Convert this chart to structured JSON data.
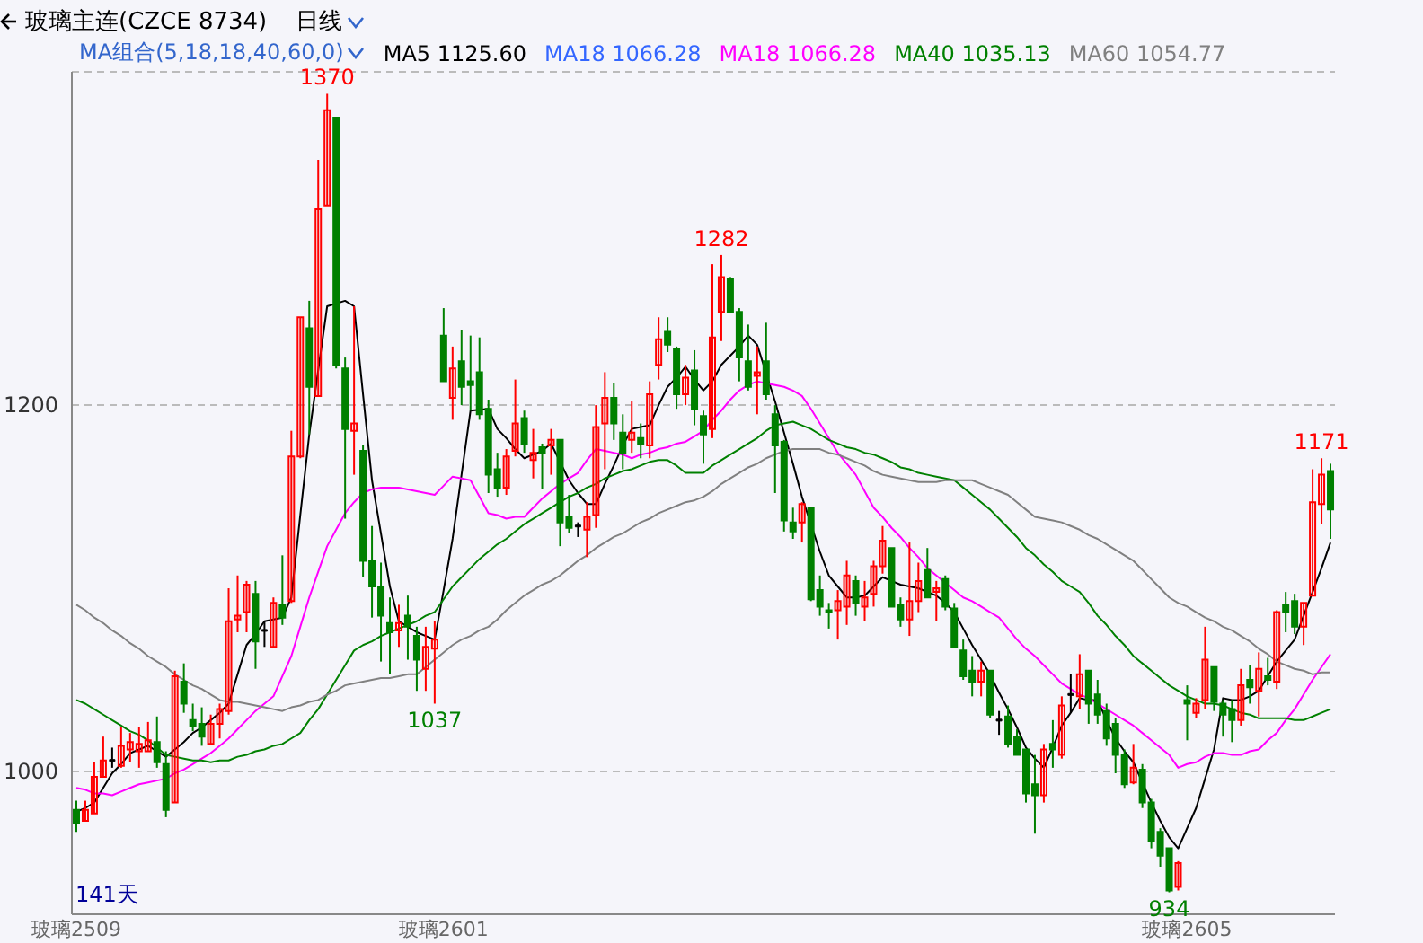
{
  "chart_data": {
    "type": "candlestick",
    "title": "玻璃主连(CZCE 8734)",
    "subtitle": "日线",
    "legend_title": "MA组合(5,18,18,40,60,0)",
    "legend": "top",
    "grid": "y",
    "categories": [
      "玻璃2509",
      null,
      null,
      null,
      null,
      null,
      null,
      null,
      null,
      null,
      null,
      null,
      null,
      null,
      null,
      null,
      null,
      null,
      null,
      null,
      null,
      null,
      null,
      null,
      null,
      null,
      null,
      null,
      null,
      null,
      null,
      null,
      null,
      null,
      null,
      null,
      null,
      null,
      null,
      null,
      null,
      "玻璃2601",
      null,
      null,
      null,
      null,
      null,
      null,
      null,
      null,
      null,
      null,
      null,
      null,
      null,
      null,
      null,
      null,
      null,
      null,
      null,
      null,
      null,
      null,
      null,
      null,
      null,
      null,
      null,
      null,
      null,
      null,
      null,
      null,
      null,
      null,
      null,
      null,
      null,
      null,
      null,
      null,
      null,
      null,
      null,
      null,
      null,
      null,
      null,
      null,
      null,
      null,
      null,
      null,
      null,
      null,
      null,
      null,
      null,
      null,
      null,
      null,
      null,
      null,
      null,
      null,
      null,
      null,
      null,
      null,
      null,
      null,
      null,
      null,
      null,
      null,
      null,
      null,
      null,
      null,
      null,
      null,
      null,
      null,
      "玻璃2605",
      null,
      null,
      null,
      null,
      null,
      null,
      null,
      null,
      null,
      null,
      null,
      null,
      null,
      null,
      null,
      null
    ],
    "ylim": [
      922,
      1382
    ],
    "yticks": [
      1000,
      1200
    ],
    "ohlc": [
      [
        979,
        984,
        967,
        972
      ],
      [
        973,
        984,
        973,
        979
      ],
      [
        977,
        1005,
        977,
        997
      ],
      [
        997,
        1019,
        997,
        1006
      ],
      [
        1006,
        1013,
        1002,
        1006
      ],
      [
        1003,
        1024,
        1002,
        1014
      ],
      [
        1012,
        1021,
        1005,
        1016
      ],
      [
        1011,
        1024,
        1002,
        1015
      ],
      [
        1011,
        1027,
        1011,
        1017
      ],
      [
        1016,
        1030,
        1002,
        1005
      ],
      [
        1004,
        1011,
        975,
        979
      ],
      [
        983,
        1055,
        983,
        1052
      ],
      [
        1049,
        1059,
        1032,
        1037
      ],
      [
        1028,
        1037,
        1022,
        1025
      ],
      [
        1026,
        1035,
        1014,
        1019
      ],
      [
        1015,
        1031,
        1015,
        1026
      ],
      [
        1026,
        1037,
        1018,
        1034
      ],
      [
        1033,
        1100,
        1031,
        1082
      ],
      [
        1083,
        1107,
        1076,
        1085
      ],
      [
        1087,
        1104,
        1076,
        1102
      ],
      [
        1097,
        1104,
        1056,
        1071
      ],
      [
        1077,
        1082,
        1068,
        1077
      ],
      [
        1068,
        1095,
        1068,
        1092
      ],
      [
        1091,
        1118,
        1080,
        1084
      ],
      [
        1093,
        1186,
        1092,
        1172
      ],
      [
        1172,
        1248,
        1171,
        1248
      ],
      [
        1242,
        1257,
        1184,
        1210
      ],
      [
        1205,
        1334,
        1205,
        1307
      ],
      [
        1309,
        1370,
        1309,
        1361
      ],
      [
        1357,
        1357,
        1220,
        1222
      ],
      [
        1220,
        1226,
        1138,
        1187
      ],
      [
        1186,
        1254,
        1162,
        1190
      ],
      [
        1175,
        1178,
        1106,
        1115
      ],
      [
        1115,
        1134,
        1084,
        1101
      ],
      [
        1101,
        1114,
        1060,
        1085
      ],
      [
        1081,
        1095,
        1053,
        1076
      ],
      [
        1077,
        1091,
        1068,
        1081
      ],
      [
        1085,
        1096,
        1061,
        1079
      ],
      [
        1074,
        1079,
        1044,
        1061
      ],
      [
        1056,
        1079,
        1044,
        1068
      ],
      [
        1067,
        1082,
        1037,
        1072
      ],
      [
        1238,
        1253,
        1213,
        1213
      ],
      [
        1204,
        1232,
        1192,
        1220
      ],
      [
        1224,
        1241,
        1200,
        1210
      ],
      [
        1213,
        1238,
        1197,
        1211
      ],
      [
        1218,
        1237,
        1192,
        1195
      ],
      [
        1198,
        1203,
        1152,
        1162
      ],
      [
        1165,
        1174,
        1150,
        1155
      ],
      [
        1155,
        1176,
        1151,
        1172
      ],
      [
        1175,
        1214,
        1172,
        1190
      ],
      [
        1193,
        1197,
        1174,
        1179
      ],
      [
        1170,
        1187,
        1160,
        1174
      ],
      [
        1177,
        1179,
        1154,
        1174
      ],
      [
        1178,
        1187,
        1162,
        1181
      ],
      [
        1181,
        1181,
        1123,
        1136
      ],
      [
        1139,
        1151,
        1130,
        1133
      ],
      [
        1134,
        1136,
        1128,
        1134
      ],
      [
        1132,
        1147,
        1117,
        1139
      ],
      [
        1140,
        1200,
        1133,
        1188
      ],
      [
        1190,
        1218,
        1165,
        1204
      ],
      [
        1204,
        1212,
        1181,
        1190
      ],
      [
        1185,
        1195,
        1165,
        1174
      ],
      [
        1181,
        1202,
        1174,
        1185
      ],
      [
        1182,
        1190,
        1171,
        1179
      ],
      [
        1178,
        1213,
        1171,
        1206
      ],
      [
        1222,
        1248,
        1214,
        1236
      ],
      [
        1240,
        1248,
        1229,
        1233
      ],
      [
        1231,
        1232,
        1198,
        1206
      ],
      [
        1206,
        1222,
        1200,
        1215
      ],
      [
        1219,
        1230,
        1189,
        1198
      ],
      [
        1194,
        1197,
        1168,
        1184
      ],
      [
        1187,
        1277,
        1182,
        1237
      ],
      [
        1251,
        1282,
        1235,
        1270
      ],
      [
        1269,
        1270,
        1251,
        1251
      ],
      [
        1251,
        1253,
        1213,
        1226
      ],
      [
        1224,
        1244,
        1208,
        1210
      ],
      [
        1216,
        1232,
        1195,
        1218
      ],
      [
        1224,
        1245,
        1203,
        1206
      ],
      [
        1195,
        1200,
        1152,
        1178
      ],
      [
        1180,
        1181,
        1131,
        1137
      ],
      [
        1136,
        1144,
        1127,
        1131
      ],
      [
        1136,
        1147,
        1125,
        1146
      ],
      [
        1144,
        1144,
        1093,
        1094
      ],
      [
        1099,
        1107,
        1085,
        1090
      ],
      [
        1088,
        1092,
        1078,
        1087
      ],
      [
        1088,
        1099,
        1072,
        1093
      ],
      [
        1090,
        1115,
        1080,
        1107
      ],
      [
        1104,
        1107,
        1085,
        1092
      ],
      [
        1090,
        1104,
        1082,
        1095
      ],
      [
        1097,
        1115,
        1090,
        1112
      ],
      [
        1112,
        1134,
        1108,
        1126
      ],
      [
        1122,
        1122,
        1090,
        1090
      ],
      [
        1091,
        1095,
        1079,
        1083
      ],
      [
        1083,
        1125,
        1074,
        1093
      ],
      [
        1093,
        1114,
        1087,
        1104
      ],
      [
        1110,
        1122,
        1095,
        1095
      ],
      [
        1098,
        1104,
        1082,
        1100
      ],
      [
        1105,
        1107,
        1088,
        1090
      ],
      [
        1089,
        1092,
        1068,
        1068
      ],
      [
        1066,
        1072,
        1050,
        1052
      ],
      [
        1055,
        1063,
        1041,
        1049
      ],
      [
        1049,
        1060,
        1041,
        1055
      ],
      [
        1055,
        1055,
        1029,
        1031
      ],
      [
        1028,
        1033,
        1020,
        1028
      ],
      [
        1030,
        1036,
        1013,
        1015
      ],
      [
        1019,
        1023,
        1009,
        1009
      ],
      [
        1012,
        1012,
        983,
        988
      ],
      [
        993,
        1009,
        966,
        987
      ],
      [
        987,
        1015,
        983,
        1012
      ],
      [
        1015,
        1028,
        1002,
        1012
      ],
      [
        1009,
        1041,
        1007,
        1036
      ],
      [
        1042,
        1053,
        1032,
        1042
      ],
      [
        1041,
        1064,
        1034,
        1053
      ],
      [
        1055,
        1055,
        1026,
        1037
      ],
      [
        1042,
        1050,
        1026,
        1031
      ],
      [
        1033,
        1037,
        1014,
        1018
      ],
      [
        1026,
        1029,
        999,
        1009
      ],
      [
        1009,
        1012,
        991,
        993
      ],
      [
        994,
        1015,
        993,
        1002
      ],
      [
        1001,
        1004,
        980,
        983
      ],
      [
        983,
        985,
        958,
        962
      ],
      [
        967,
        969,
        948,
        954
      ],
      [
        958,
        958,
        934,
        935
      ],
      [
        937,
        951,
        935,
        950
      ],
      [
        1039,
        1047,
        1017,
        1037
      ],
      [
        1032,
        1040,
        1029,
        1037
      ],
      [
        1039,
        1079,
        1034,
        1061
      ],
      [
        1057,
        1057,
        1033,
        1038
      ],
      [
        1037,
        1039,
        1019,
        1031
      ],
      [
        1034,
        1039,
        1016,
        1028
      ],
      [
        1028,
        1056,
        1025,
        1047
      ],
      [
        1050,
        1058,
        1037,
        1046
      ],
      [
        1044,
        1065,
        1030,
        1056
      ],
      [
        1052,
        1062,
        1047,
        1050
      ],
      [
        1049,
        1088,
        1045,
        1087
      ],
      [
        1091,
        1098,
        1076,
        1087
      ],
      [
        1093,
        1097,
        1075,
        1079
      ],
      [
        1079,
        1092,
        1069,
        1092
      ],
      [
        1096,
        1165,
        1096,
        1147
      ],
      [
        1146,
        1171,
        1135,
        1162
      ],
      [
        1164,
        1168,
        1127,
        1143
      ]
    ],
    "colors": [
      "#008000",
      "#ff0000",
      "#ff0000",
      "#ff0000",
      "#000000",
      "#ff0000",
      "#ff0000",
      "#ff0000",
      "#ff0000",
      "#008000",
      "#008000",
      "#ff0000",
      "#008000",
      "#008000",
      "#008000",
      "#ff0000",
      "#ff0000",
      "#ff0000",
      "#ff0000",
      "#ff0000",
      "#008000",
      "#000000",
      "#ff0000",
      "#008000",
      "#ff0000",
      "#ff0000",
      "#008000",
      "#ff0000",
      "#ff0000",
      "#008000",
      "#008000",
      "#ff0000",
      "#008000",
      "#008000",
      "#008000",
      "#008000",
      "#ff0000",
      "#008000",
      "#008000",
      "#ff0000",
      "#ff0000",
      "#008000",
      "#ff0000",
      "#008000",
      "#008000",
      "#008000",
      "#008000",
      "#008000",
      "#ff0000",
      "#ff0000",
      "#008000",
      "#ff0000",
      "#008000",
      "#ff0000",
      "#008000",
      "#008000",
      "#000000",
      "#ff0000",
      "#ff0000",
      "#ff0000",
      "#008000",
      "#008000",
      "#ff0000",
      "#008000",
      "#ff0000",
      "#ff0000",
      "#008000",
      "#008000",
      "#ff0000",
      "#008000",
      "#008000",
      "#ff0000",
      "#ff0000",
      "#008000",
      "#008000",
      "#008000",
      "#ff0000",
      "#008000",
      "#008000",
      "#008000",
      "#008000",
      "#ff0000",
      "#008000",
      "#008000",
      "#008000",
      "#ff0000",
      "#ff0000",
      "#008000",
      "#ff0000",
      "#ff0000",
      "#ff0000",
      "#008000",
      "#008000",
      "#ff0000",
      "#ff0000",
      "#008000",
      "#ff0000",
      "#008000",
      "#008000",
      "#008000",
      "#008000",
      "#ff0000",
      "#008000",
      "#000000",
      "#008000",
      "#008000",
      "#008000",
      "#008000",
      "#ff0000",
      "#008000",
      "#ff0000",
      "#000000",
      "#ff0000",
      "#008000",
      "#008000",
      "#008000",
      "#008000",
      "#008000",
      "#ff0000",
      "#008000",
      "#008000",
      "#008000",
      "#008000",
      "#ff0000",
      "#008000",
      "#ff0000",
      "#ff0000",
      "#008000",
      "#008000",
      "#008000",
      "#ff0000",
      "#008000",
      "#ff0000",
      "#008000",
      "#ff0000",
      "#008000",
      "#008000",
      "#ff0000",
      "#ff0000",
      "#ff0000",
      "#008000"
    ],
    "series": [
      {
        "type": "line",
        "name": "MA5 1125.60",
        "color": "#000000",
        "values": [
          978,
          980,
          983,
          991,
          999,
          1004,
          1010,
          1012,
          1014,
          1011,
          1008,
          1012,
          1016,
          1021,
          1024,
          1028,
          1032,
          1037,
          1053,
          1069,
          1075,
          1082,
          1083,
          1084,
          1095,
          1140,
          1184,
          1219,
          1254,
          null,
          1257,
          1254,
          1206,
          1159,
          1130,
          1101,
          1082,
          1079,
          1076,
          1074,
          1072,
          1099,
          1127,
          1162,
          1197,
          null,
          1198,
          1187,
          1182,
          1176,
          1171,
          1173,
          1175,
          1179,
          1169,
          1159,
          1152,
          1146,
          1146,
          1157,
          1167,
          1178,
          1187,
          1188,
          1189,
          1200,
          1210,
          1215,
          1221,
          1214,
          1208,
          1213,
          1222,
          1227,
          1232,
          1238,
          1233,
          null,
          1202,
          1185,
          1168,
          1150,
          null,
          1120,
          1107,
          1101,
          1095,
          1095,
          1096,
          1101,
          1106,
          1104,
          1102,
          1101,
          1100,
          1098,
          1096,
          1092,
          1087,
          1078,
          1069,
          1061,
          1053,
          1043,
          1034,
          1024,
          1013,
          1007,
          1002,
          1013,
          1025,
          1032,
          1040,
          1039,
          1039,
          1028,
          1018,
          1011,
          1005,
          994,
          983,
          973,
          964,
          958,
          969,
          980,
          996,
          1012,
          1040,
          1039,
          1039,
          1041,
          1044,
          1052,
          1060,
          1066,
          1072,
          1085,
          1098,
          1111,
          1125
        ]
      },
      {
        "type": "line",
        "name": "MA18 1066.28",
        "color": "#3366ff",
        "values": [
          null,
          null,
          null,
          null,
          null,
          null,
          null,
          null,
          null,
          null,
          null,
          null,
          null,
          null,
          null,
          null,
          null,
          null,
          null,
          null,
          null,
          null,
          null,
          null,
          null,
          null,
          null,
          null,
          null,
          null,
          null,
          null,
          null,
          null,
          null,
          null,
          null,
          null,
          null,
          null,
          null,
          null,
          null,
          null,
          null,
          null,
          null,
          null,
          null,
          null,
          null,
          null,
          null,
          null,
          null,
          null,
          null,
          null,
          null,
          null,
          null,
          null,
          null,
          null,
          null,
          null,
          null,
          null,
          null,
          null,
          null,
          null,
          null,
          null,
          null,
          null,
          null,
          null,
          null,
          null,
          null,
          null,
          null,
          null,
          null,
          null,
          null,
          null,
          null,
          null,
          null,
          null,
          null,
          null,
          null,
          null,
          null,
          null,
          null,
          null,
          null,
          null,
          null,
          null,
          null,
          null,
          null,
          null,
          null,
          null,
          null,
          null,
          null,
          null,
          null,
          null,
          null,
          null,
          null,
          null,
          null,
          null,
          null,
          null,
          null,
          null,
          null,
          null,
          null,
          null,
          null,
          null,
          null,
          null,
          null,
          null,
          null,
          null,
          null,
          null,
          null
        ]
      },
      {
        "type": "line",
        "name": "MA18 1066.28",
        "color": "#ff00ff",
        "values": [
          991,
          990,
          988,
          988,
          987,
          989,
          991,
          993,
          994,
          995,
          996,
          999,
          1001,
          1004,
          1007,
          1010,
          1014,
          1018,
          1023,
          1028,
          1033,
          1037,
          1041,
          1052,
          1063,
          1079,
          1095,
          1109,
          1123,
          1132,
          1141,
          1147,
          1152,
          1154,
          1155,
          1155,
          1155,
          1154,
          1153,
          1152,
          1151,
          1156,
          1161,
          1160,
          1159,
          1150,
          1141,
          1140,
          1138,
          1139,
          1139,
          1144,
          1149,
          1153,
          1157,
          1160,
          1163,
          1170,
          1176,
          1175,
          1174,
          1173,
          1171,
          1173,
          1174,
          1176,
          1177,
          1179,
          1180,
          1183,
          1186,
          1192,
          1197,
          1203,
          1208,
          1211,
          1213,
          1212,
          1211,
          1210,
          1208,
          1205,
          1198,
          1190,
          1182,
          1174,
          1168,
          1162,
          1153,
          1144,
          1139,
          1133,
          1128,
          1122,
          1117,
          1111,
          1107,
          1103,
          1099,
          1095,
          1093,
          1090,
          1087,
          1084,
          1078,
          1072,
          1067,
          1063,
          1058,
          1053,
          1048,
          1045,
          1042,
          1040,
          1037,
          1034,
          1031,
          1028,
          1025,
          1021,
          1017,
          1013,
          1009,
          1002,
          1004,
          1005,
          1008,
          1010,
          1010,
          1009,
          1009,
          1011,
          1012,
          1017,
          1021,
          1028,
          1034,
          1042,
          1050,
          1057,
          1064
        ]
      },
      {
        "type": "line",
        "name": "MA40 1035.13",
        "color": "#008000",
        "values": [
          1039,
          1037,
          1034,
          1031,
          1028,
          1025,
          1022,
          1020,
          1017,
          1013,
          1009,
          1008,
          1007,
          1006,
          1006,
          1005,
          1006,
          1006,
          1008,
          1009,
          1011,
          1012,
          1014,
          1015,
          1018,
          1021,
          1028,
          1034,
          1042,
          1050,
          1058,
          1066,
          1069,
          1071,
          1074,
          1076,
          1078,
          1080,
          1082,
          1085,
          1087,
          1094,
          1101,
          1106,
          1111,
          1116,
          1120,
          1124,
          1127,
          1131,
          1135,
          1138,
          1141,
          1144,
          1147,
          1150,
          1152,
          1155,
          1157,
          1160,
          1162,
          1164,
          1165,
          1167,
          1169,
          1170,
          1170,
          1167,
          1163,
          1163,
          1163,
          1167,
          1170,
          1173,
          1176,
          1179,
          1182,
          1186,
          1189,
          1190,
          1191,
          1189,
          1187,
          1184,
          1181,
          1179,
          1177,
          1176,
          1174,
          1173,
          1171,
          1169,
          1166,
          1165,
          1163,
          1162,
          1161,
          1160,
          1159,
          1155,
          1151,
          1147,
          1143,
          1138,
          1133,
          1128,
          1122,
          1118,
          1113,
          1109,
          1104,
          1101,
          1098,
          1092,
          1085,
          1080,
          1074,
          1069,
          1063,
          1059,
          1055,
          1051,
          1047,
          1044,
          1041,
          1039,
          1037,
          1037,
          1036,
          1034,
          1032,
          1031,
          1029,
          1029,
          1029,
          1029,
          1028,
          1028,
          1030,
          1032,
          1034
        ]
      },
      {
        "type": "line",
        "name": "MA60 1054.77",
        "color": "#808080",
        "values": [
          1091,
          1088,
          1084,
          1081,
          1077,
          1074,
          1070,
          1067,
          1063,
          1060,
          1057,
          1053,
          1050,
          1047,
          1045,
          1042,
          1039,
          1038,
          1038,
          1037,
          1036,
          1035,
          1034,
          1033,
          1035,
          1036,
          1038,
          1039,
          1042,
          1044,
          1047,
          1048,
          1049,
          1050,
          1051,
          1051,
          1052,
          1053,
          1053,
          1057,
          1061,
          1065,
          1069,
          1072,
          1074,
          1077,
          1079,
          1083,
          1088,
          1092,
          1096,
          1099,
          1102,
          1104,
          1107,
          1111,
          1115,
          1118,
          1122,
          1125,
          1128,
          1130,
          1133,
          1136,
          1138,
          1141,
          1143,
          1145,
          1147,
          1148,
          1150,
          1153,
          1157,
          1160,
          1163,
          1166,
          1168,
          1171,
          1173,
          1175,
          1176,
          1176,
          1176,
          1176,
          1174,
          1173,
          1171,
          1169,
          1167,
          1164,
          1162,
          1161,
          1160,
          1159,
          1158,
          1158,
          1158,
          1159,
          1159,
          1159,
          1159,
          1157,
          1155,
          1153,
          1151,
          1147,
          1143,
          1139,
          1138,
          1137,
          1136,
          1134,
          1132,
          1129,
          1127,
          1124,
          1121,
          1118,
          1115,
          1110,
          1105,
          1100,
          1095,
          1092,
          1090,
          1087,
          1084,
          1082,
          1079,
          1077,
          1074,
          1071,
          1067,
          1064,
          1060,
          1058,
          1056,
          1055,
          1053,
          1054,
          1054
        ]
      }
    ],
    "annotations": [
      {
        "text": "1370",
        "y": 1370
      },
      {
        "text": "1282",
        "y": 1282
      },
      {
        "text": "1037",
        "y": 1037
      },
      {
        "text": "1171",
        "y": 1171
      },
      {
        "text": "934",
        "y": 934
      },
      "141天"
    ]
  }
}
